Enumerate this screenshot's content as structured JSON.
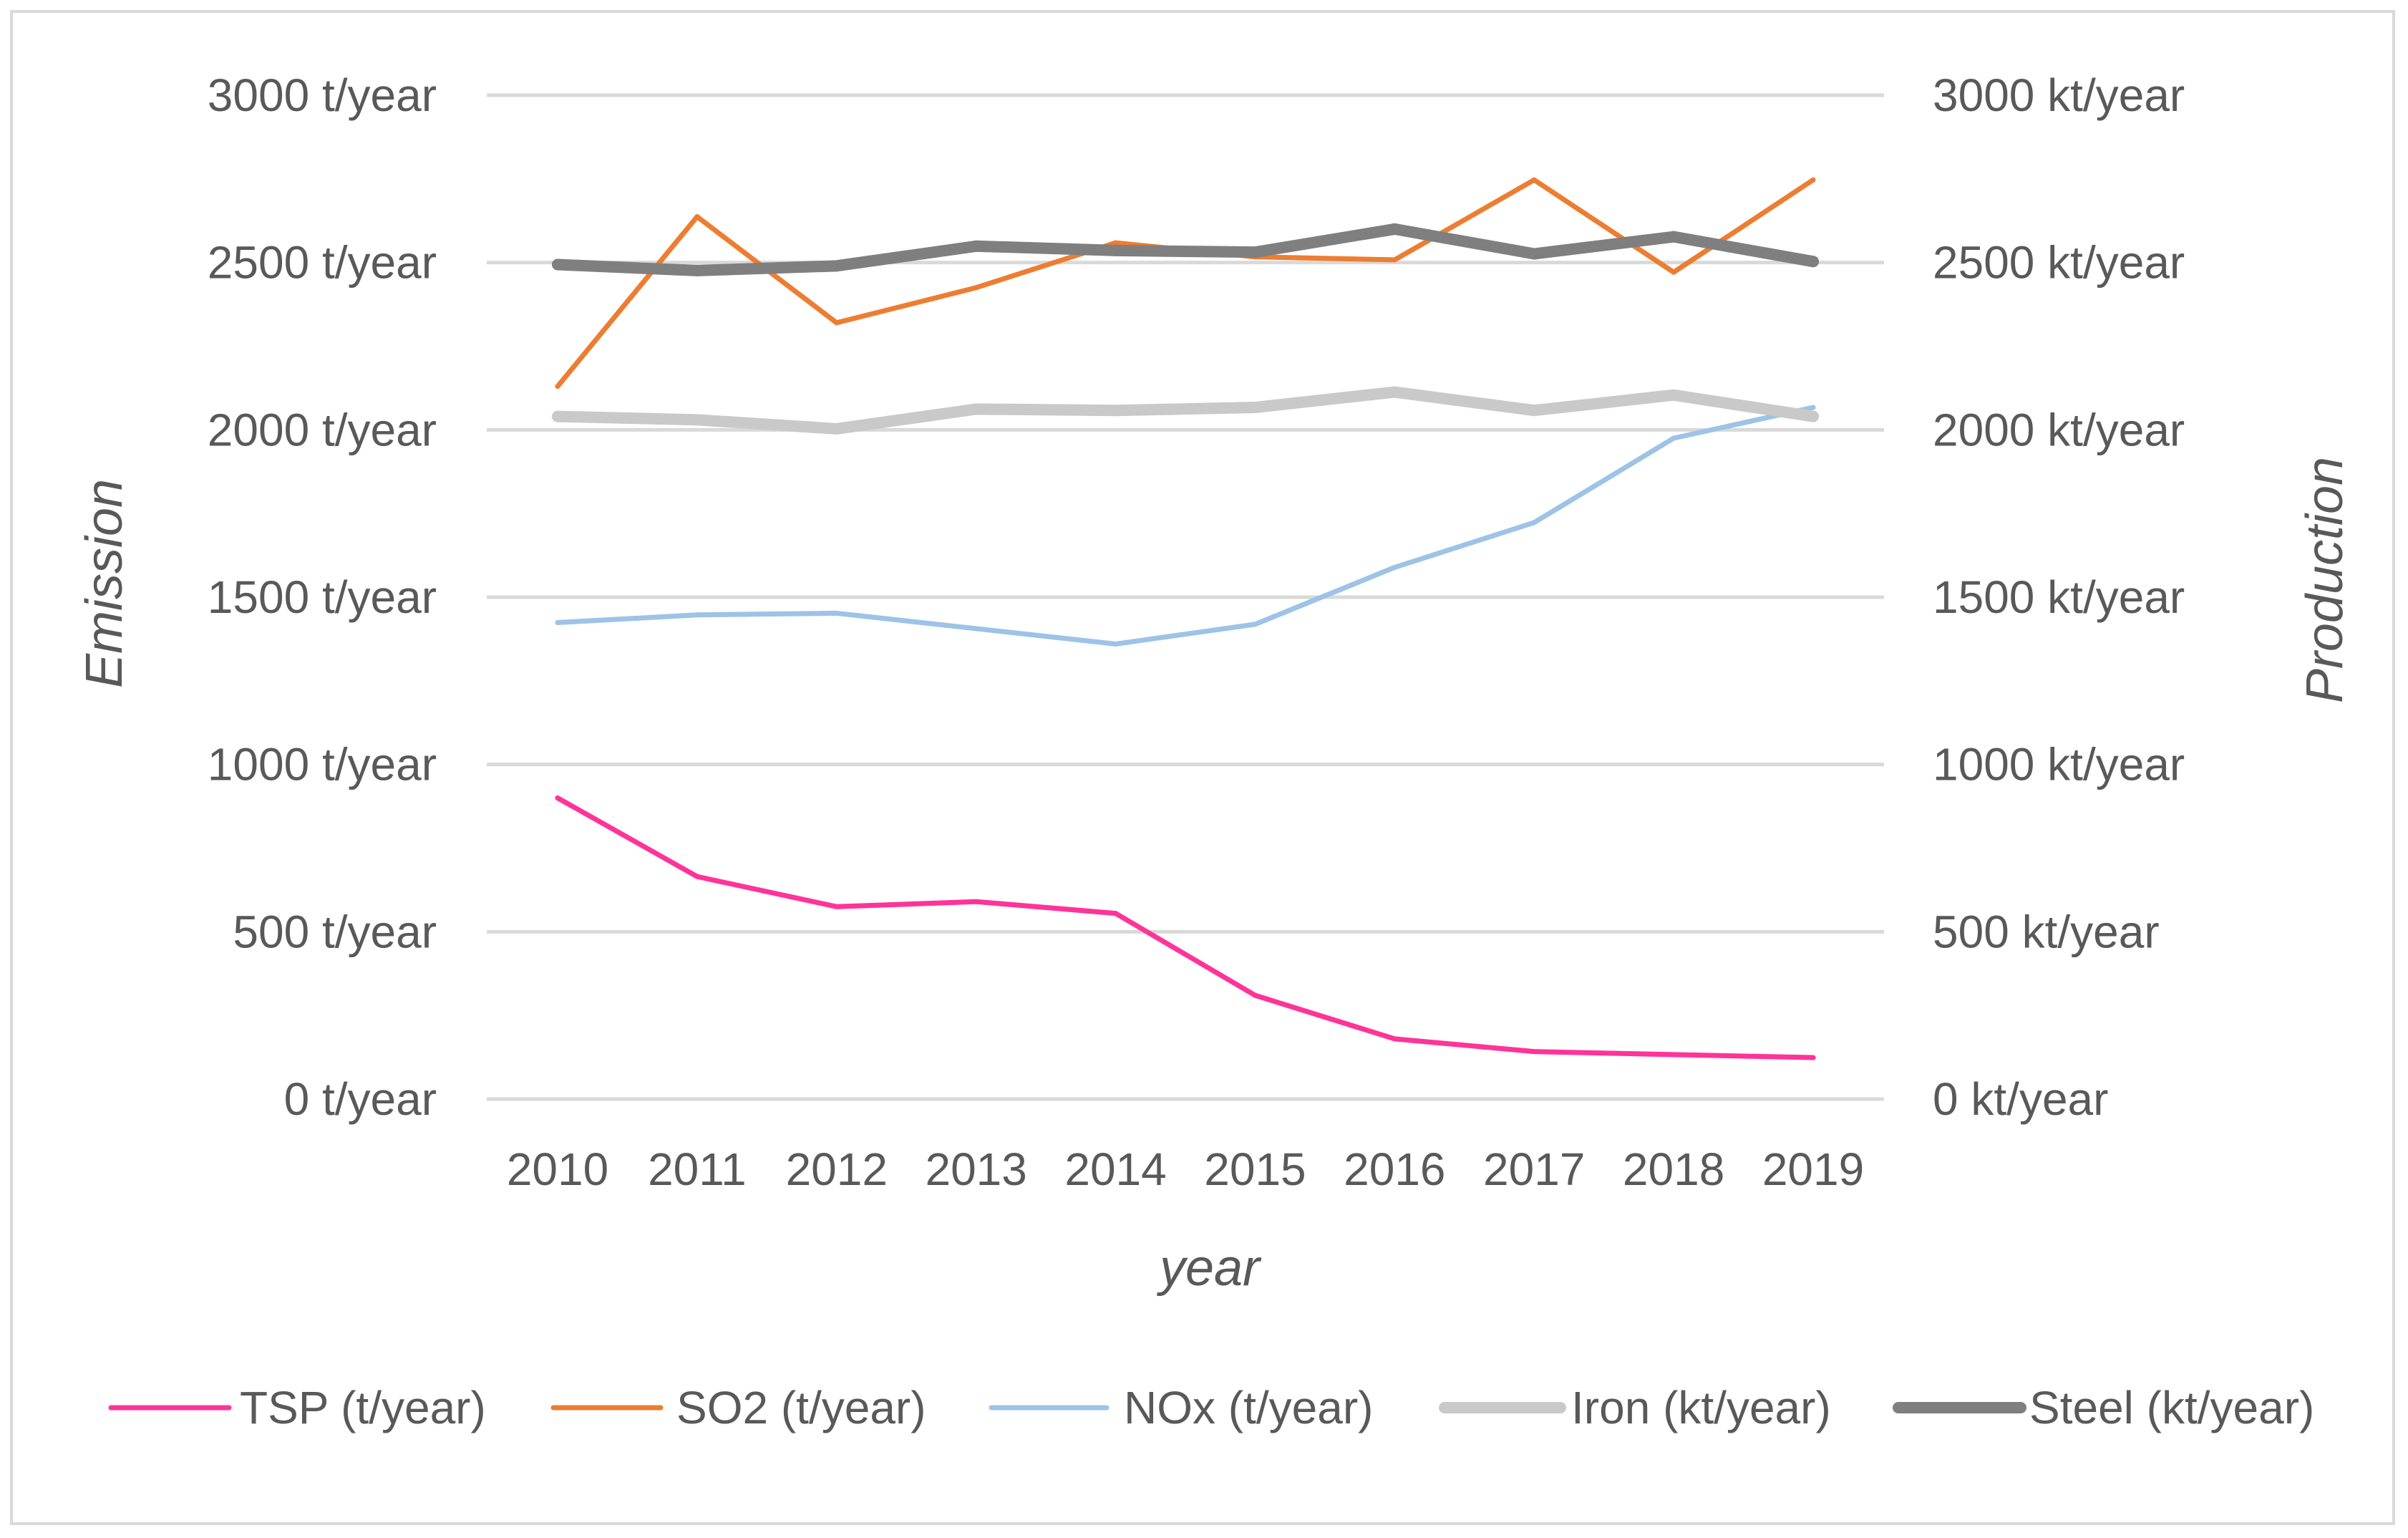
{
  "chart_data": {
    "type": "line",
    "title": "",
    "xlabel": "year",
    "ylabel": "Emission",
    "y2label": "Production",
    "categories": [
      "2010",
      "2011",
      "2012",
      "2013",
      "2014",
      "2015",
      "2016",
      "2017",
      "2018",
      "2019"
    ],
    "ylim": [
      0,
      3000
    ],
    "y2lim": [
      0,
      3000
    ],
    "yticks": [
      "0 t/year",
      "500 t/year",
      "1000 t/year",
      "1500 t/year",
      "2000 t/year",
      "2500 t/year",
      "3000 t/year"
    ],
    "y2ticks": [
      "0 kt/year",
      "500 kt/year",
      "1000 kt/year",
      "1500 kt/year",
      "2000 kt/year",
      "2500 kt/year",
      "3000 kt/year"
    ],
    "tick_values": [
      0,
      500,
      1000,
      1500,
      2000,
      2500,
      3000
    ],
    "grid": true,
    "legend_position": "bottom",
    "series": [
      {
        "name": "TSP (t/year)",
        "axis": "left",
        "color": "#ff3399",
        "width": "thin",
        "values": [
          900,
          665,
          575,
          590,
          555,
          310,
          180,
          142,
          133,
          124
        ]
      },
      {
        "name": "SO2 (t/year)",
        "axis": "left",
        "color": "#ed7d31",
        "width": "thin",
        "values": [
          2130,
          2637,
          2320,
          2425,
          2559,
          2517,
          2508,
          2747,
          2471,
          2747
        ]
      },
      {
        "name": "NOx (t/year)",
        "axis": "left",
        "color": "#9dc3e6",
        "width": "thin",
        "values": [
          1424,
          1447,
          1452,
          1406,
          1360,
          1419,
          1589,
          1723,
          1975,
          2067
        ]
      },
      {
        "name": "Iron (kt/year)",
        "axis": "right",
        "color": "#c9c9c9",
        "width": "thick",
        "values": [
          2040,
          2030,
          2003,
          2062,
          2058,
          2067,
          2113,
          2058,
          2104,
          2040
        ]
      },
      {
        "name": "Steel (kt/year)",
        "axis": "right",
        "color": "#7f7f7f",
        "width": "thick",
        "values": [
          2494,
          2476,
          2490,
          2549,
          2536,
          2531,
          2600,
          2526,
          2577,
          2503
        ]
      }
    ]
  }
}
